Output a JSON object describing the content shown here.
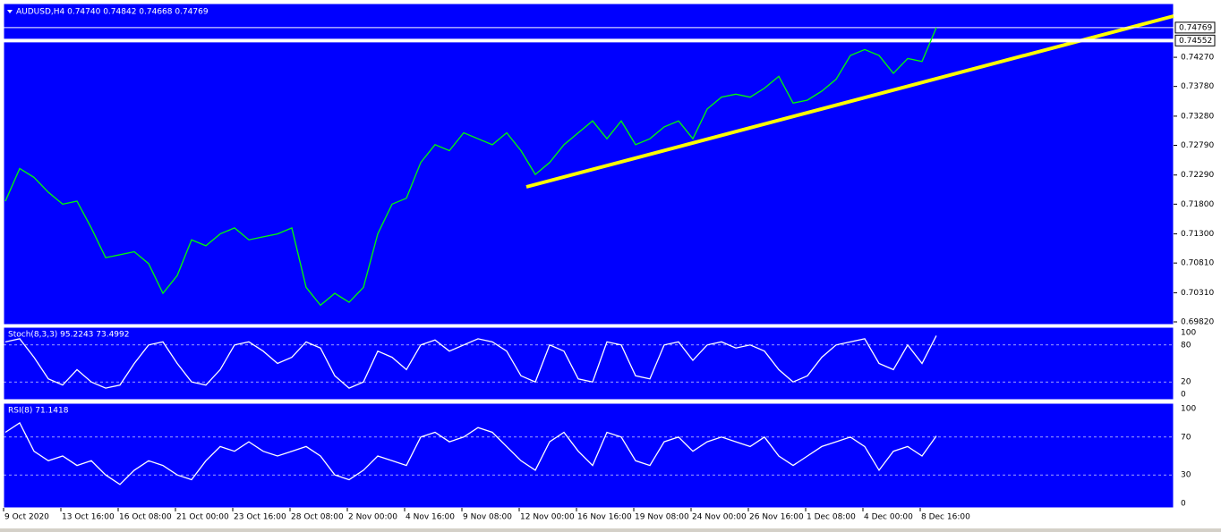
{
  "header": "AUDUSD,H4  0.74740 0.74842 0.74668 0.74769",
  "price_axis": {
    "ticks": [
      {
        "value": 0.7427,
        "label": "0.74270"
      },
      {
        "value": 0.7378,
        "label": "0.73780"
      },
      {
        "value": 0.7328,
        "label": "0.73280"
      },
      {
        "value": 0.7279,
        "label": "0.72790"
      },
      {
        "value": 0.7229,
        "label": "0.72290"
      },
      {
        "value": 0.718,
        "label": "0.71800"
      },
      {
        "value": 0.713,
        "label": "0.71300"
      },
      {
        "value": 0.7081,
        "label": "0.70810"
      },
      {
        "value": 0.7031,
        "label": "0.70310"
      },
      {
        "value": 0.6982,
        "label": "0.69820"
      }
    ],
    "levels": [
      {
        "value": 0.74769,
        "label": "0.74769"
      },
      {
        "value": 0.74552,
        "label": "0.74552"
      }
    ]
  },
  "price": {
    "values": [
      0.7185,
      0.724,
      0.7225,
      0.72,
      0.718,
      0.7185,
      0.714,
      0.709,
      0.7095,
      0.71,
      0.708,
      0.703,
      0.706,
      0.712,
      0.711,
      0.713,
      0.714,
      0.712,
      0.7125,
      0.713,
      0.714,
      0.704,
      0.701,
      0.703,
      0.7015,
      0.704,
      0.713,
      0.718,
      0.719,
      0.725,
      0.728,
      0.727,
      0.73,
      0.729,
      0.728,
      0.73,
      0.727,
      0.723,
      0.725,
      0.728,
      0.73,
      0.732,
      0.729,
      0.732,
      0.728,
      0.729,
      0.731,
      0.732,
      0.729,
      0.734,
      0.736,
      0.7365,
      0.736,
      0.7375,
      0.7395,
      0.735,
      0.7355,
      0.737,
      0.739,
      0.743,
      0.744,
      0.743,
      0.74,
      0.7425,
      0.742,
      0.74769
    ]
  },
  "stoch": {
    "label": "Stoch(8,3,3) 95.2243 73.4992",
    "ticks": [
      100,
      80,
      20,
      0
    ],
    "values": [
      85,
      90,
      60,
      25,
      15,
      40,
      20,
      10,
      15,
      50,
      80,
      85,
      50,
      20,
      15,
      40,
      80,
      85,
      70,
      50,
      60,
      85,
      75,
      30,
      10,
      20,
      70,
      60,
      40,
      80,
      88,
      70,
      80,
      90,
      85,
      70,
      30,
      20,
      80,
      70,
      25,
      20,
      85,
      80,
      30,
      25,
      80,
      85,
      55,
      80,
      85,
      75,
      80,
      70,
      40,
      20,
      30,
      60,
      80,
      85,
      90,
      50,
      40,
      80,
      50,
      95
    ]
  },
  "rsi": {
    "label": "RSI(8) 71.1418",
    "ticks": [
      100,
      70,
      30,
      0
    ],
    "values": [
      75,
      85,
      55,
      45,
      50,
      40,
      45,
      30,
      20,
      35,
      45,
      40,
      30,
      25,
      45,
      60,
      55,
      65,
      55,
      50,
      55,
      60,
      50,
      30,
      25,
      35,
      50,
      45,
      40,
      70,
      75,
      65,
      70,
      80,
      75,
      60,
      45,
      35,
      65,
      75,
      55,
      40,
      75,
      70,
      45,
      40,
      65,
      70,
      55,
      65,
      70,
      65,
      60,
      70,
      50,
      40,
      50,
      60,
      65,
      70,
      60,
      35,
      55,
      60,
      50,
      71.1418
    ]
  },
  "dates": [
    "9 Oct 2020",
    "13 Oct 16:00",
    "16 Oct 08:00",
    "21 Oct 00:00",
    "23 Oct 16:00",
    "28 Oct 08:00",
    "2 Nov 00:00",
    "4 Nov 16:00",
    "9 Nov 08:00",
    "12 Nov 00:00",
    "16 Nov 16:00",
    "19 Nov 08:00",
    "24 Nov 00:00",
    "26 Nov 16:00",
    "1 Dec 08:00",
    "4 Dec 00:00",
    "8 Dec 16:00"
  ]
}
